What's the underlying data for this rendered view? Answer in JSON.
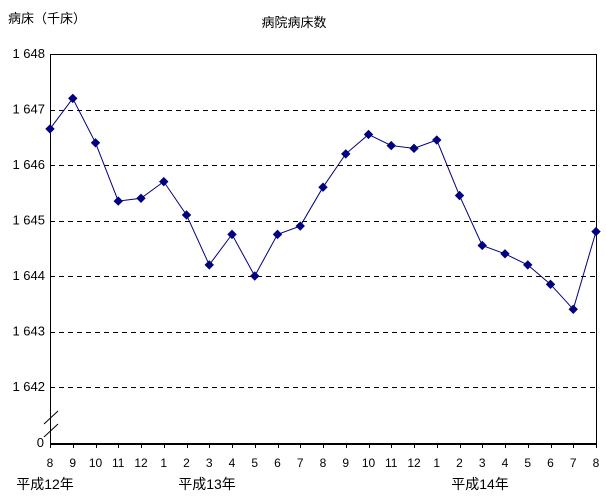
{
  "chart_data": {
    "type": "line",
    "title": "病院病床数",
    "y_axis_unit_label": "病床（千床）",
    "legend": "none",
    "grid": "horizontal-dashed",
    "line_color": "#000080",
    "axis_color": "#000000",
    "marker": "diamond",
    "axis_break_above_zero": true,
    "ylim": [
      1642,
      1648
    ],
    "categories": [
      "8",
      "9",
      "10",
      "11",
      "12",
      "1",
      "2",
      "3",
      "4",
      "5",
      "6",
      "7",
      "8",
      "9",
      "10",
      "11",
      "12",
      "1",
      "2",
      "3",
      "4",
      "5",
      "6",
      "7",
      "8"
    ],
    "values": [
      1646.65,
      1647.2,
      1646.4,
      1645.35,
      1645.4,
      1645.7,
      1645.1,
      1644.2,
      1644.75,
      1644.0,
      1644.75,
      1644.9,
      1645.6,
      1646.2,
      1646.55,
      1646.35,
      1646.3,
      1646.45,
      1645.45,
      1644.55,
      1644.4,
      1644.2,
      1643.85,
      1643.4,
      1644.8
    ],
    "year_groups": [
      "平成12年",
      "平成13年",
      "平成14年"
    ],
    "y_tick_labels": [
      "1 648",
      "1 647",
      "1 646",
      "1 645",
      "1 644",
      "1 643",
      "1 642"
    ],
    "y_tick_values": [
      1648,
      1647,
      1646,
      1645,
      1644,
      1643,
      1642
    ],
    "zero_label": "0"
  }
}
